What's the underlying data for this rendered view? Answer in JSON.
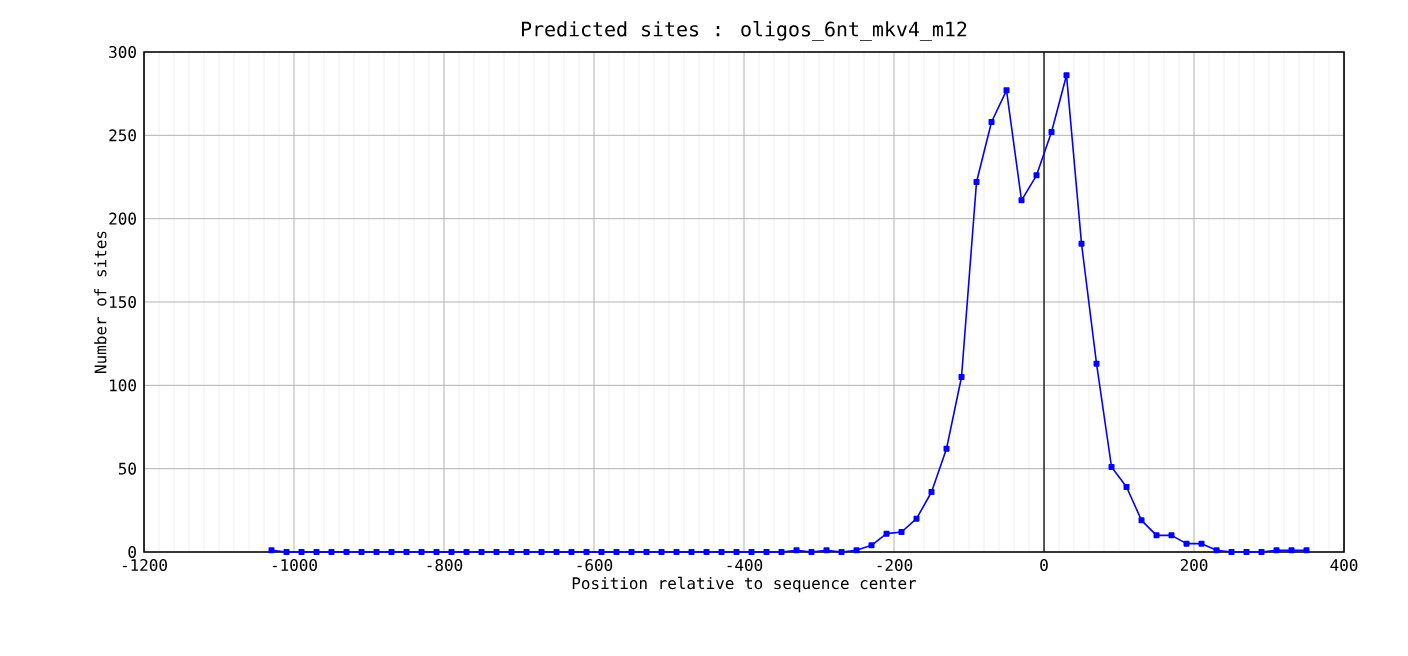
{
  "chart_data": {
    "type": "line",
    "title": "Predicted sites : oligos_6nt_mkv4_m12",
    "xlabel": "Position relative to sequence center",
    "ylabel": "Number of sites",
    "x": [
      -1030,
      -1010,
      -990,
      -970,
      -950,
      -930,
      -910,
      -890,
      -870,
      -850,
      -830,
      -810,
      -790,
      -770,
      -750,
      -730,
      -710,
      -690,
      -670,
      -650,
      -630,
      -610,
      -590,
      -570,
      -550,
      -530,
      -510,
      -490,
      -470,
      -450,
      -430,
      -410,
      -390,
      -370,
      -350,
      -330,
      -310,
      -290,
      -270,
      -250,
      -230,
      -210,
      -190,
      -170,
      -150,
      -130,
      -110,
      -90,
      -70,
      -50,
      -30,
      -10,
      10,
      30,
      50,
      70,
      90,
      110,
      130,
      150,
      170,
      190,
      210,
      230,
      250,
      270,
      290,
      310,
      330,
      350
    ],
    "series": [
      {
        "color": "#0000ff",
        "values": [
          1,
          0,
          0,
          0,
          0,
          0,
          0,
          0,
          0,
          0,
          0,
          0,
          0,
          0,
          0,
          0,
          0,
          0,
          0,
          0,
          0,
          0,
          0,
          0,
          0,
          0,
          0,
          0,
          0,
          0,
          0,
          0,
          0,
          0,
          0,
          1,
          0,
          1,
          0,
          1,
          4,
          11,
          12,
          20,
          36,
          62,
          105,
          222,
          258,
          277,
          211,
          226,
          252,
          286,
          185,
          113,
          51,
          39,
          19,
          10,
          10,
          5,
          5,
          1,
          0,
          0,
          0,
          1,
          1,
          1
        ]
      }
    ],
    "xlim": [
      -1200,
      400
    ],
    "xticks": [
      -1200,
      -1000,
      -800,
      -600,
      -400,
      -200,
      0,
      200,
      400
    ],
    "ylim": [
      0,
      300
    ],
    "yticks": [
      0,
      50,
      100,
      150,
      200,
      250,
      300
    ],
    "grid": true,
    "marker": "square",
    "line_style": "solid",
    "ref_lines": [
      {
        "axis": "x",
        "value": 0,
        "color": "#000000"
      }
    ]
  }
}
